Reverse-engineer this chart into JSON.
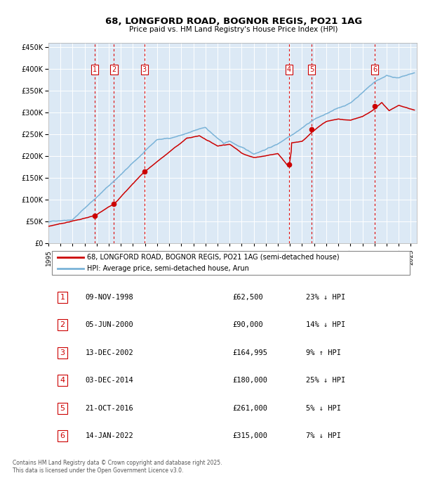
{
  "title": "68, LONGFORD ROAD, BOGNOR REGIS, PO21 1AG",
  "subtitle": "Price paid vs. HM Land Registry's House Price Index (HPI)",
  "background_color": "#dce9f5",
  "plot_bg_color": "#dce9f5",
  "ylim": [
    0,
    460000
  ],
  "yticks": [
    0,
    50000,
    100000,
    150000,
    200000,
    250000,
    300000,
    350000,
    400000,
    450000
  ],
  "xlim_start": 1995.0,
  "xlim_end": 2025.5,
  "red_line_color": "#cc0000",
  "blue_line_color": "#7ab3d8",
  "dashed_vline_color": "#dd0000",
  "transaction_label_color": "#cc0000",
  "grid_color": "#ffffff",
  "transactions": [
    {
      "num": 1,
      "date_label": "09-NOV-1998",
      "year": 1998.86,
      "price": 62500,
      "hpi_diff": "23% ↓ HPI"
    },
    {
      "num": 2,
      "date_label": "05-JUN-2000",
      "year": 2000.43,
      "price": 90000,
      "hpi_diff": "14% ↓ HPI"
    },
    {
      "num": 3,
      "date_label": "13-DEC-2002",
      "year": 2002.95,
      "price": 164995,
      "hpi_diff": "9% ↑ HPI"
    },
    {
      "num": 4,
      "date_label": "03-DEC-2014",
      "year": 2014.92,
      "price": 180000,
      "hpi_diff": "25% ↓ HPI"
    },
    {
      "num": 5,
      "date_label": "21-OCT-2016",
      "year": 2016.81,
      "price": 261000,
      "hpi_diff": "5% ↓ HPI"
    },
    {
      "num": 6,
      "date_label": "14-JAN-2022",
      "year": 2022.04,
      "price": 315000,
      "hpi_diff": "7% ↓ HPI"
    }
  ],
  "legend_red_label": "68, LONGFORD ROAD, BOGNOR REGIS, PO21 1AG (semi-detached house)",
  "legend_blue_label": "HPI: Average price, semi-detached house, Arun",
  "footer": "Contains HM Land Registry data © Crown copyright and database right 2025.\nThis data is licensed under the Open Government Licence v3.0."
}
